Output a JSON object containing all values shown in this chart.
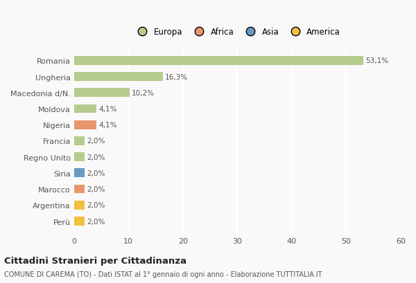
{
  "categories": [
    "Romania",
    "Ungheria",
    "Macedonia d/N.",
    "Moldova",
    "Nigeria",
    "Francia",
    "Regno Unito",
    "Siria",
    "Marocco",
    "Argentina",
    "Perù"
  ],
  "values": [
    53.1,
    16.3,
    10.2,
    4.1,
    4.1,
    2.0,
    2.0,
    2.0,
    2.0,
    2.0,
    2.0
  ],
  "labels": [
    "53,1%",
    "16,3%",
    "10,2%",
    "4,1%",
    "4,1%",
    "2,0%",
    "2,0%",
    "2,0%",
    "2,0%",
    "2,0%",
    "2,0%"
  ],
  "colors": [
    "#b5cc8e",
    "#b5cc8e",
    "#b5cc8e",
    "#b5cc8e",
    "#e8956d",
    "#b5cc8e",
    "#b5cc8e",
    "#6a9ac4",
    "#e8956d",
    "#f0c040",
    "#f0c040"
  ],
  "legend": [
    {
      "label": "Europa",
      "color": "#b5cc8e"
    },
    {
      "label": "Africa",
      "color": "#e8956d"
    },
    {
      "label": "Asia",
      "color": "#6a9ac4"
    },
    {
      "label": "America",
      "color": "#f0c040"
    }
  ],
  "xlim": [
    0,
    60
  ],
  "xticks": [
    0,
    10,
    20,
    30,
    40,
    50,
    60
  ],
  "title": "Cittadini Stranieri per Cittadinanza",
  "subtitle": "COMUNE DI CAREMA (TO) - Dati ISTAT al 1° gennaio di ogni anno - Elaborazione TUTTITALIA.IT",
  "bg_color": "#f9f9f9",
  "grid_color": "#ffffff",
  "bar_height": 0.55,
  "label_fontsize": 7.5,
  "ytick_fontsize": 8,
  "xtick_fontsize": 8
}
